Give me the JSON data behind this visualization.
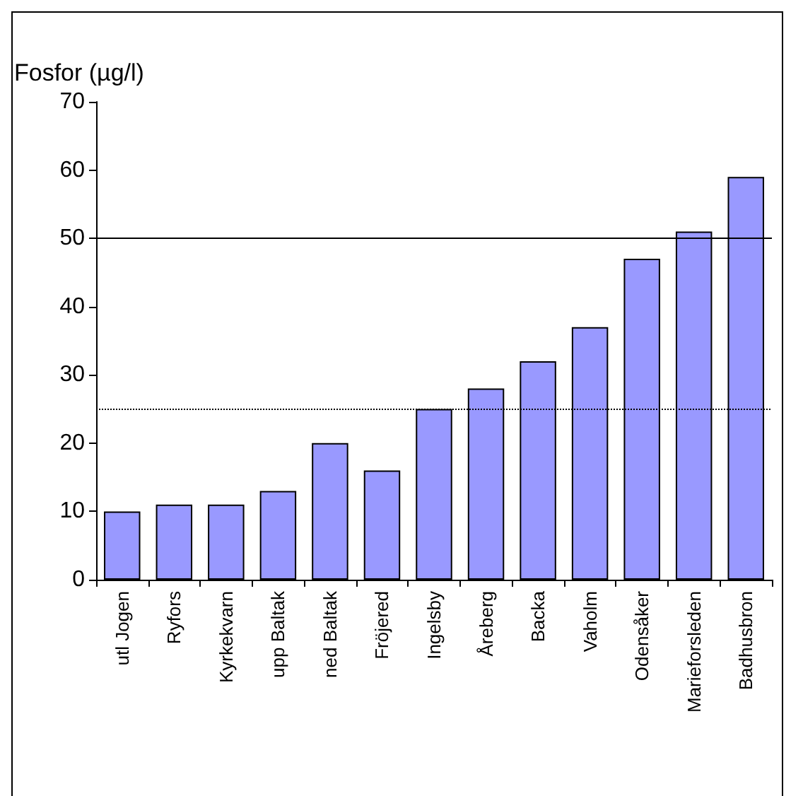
{
  "chart_data": {
    "type": "bar",
    "ylabel": "Fosfor (µg/l)",
    "categories": [
      "utl Jogen",
      "Ryfors",
      "Kyrkekvarn",
      "upp Baltak",
      "ned Baltak",
      "Fröjered",
      "Ingelsby",
      "Åreberg",
      "Backa",
      "Vaholm",
      "Odensåker",
      "Marieforsleden",
      "Badhusbron"
    ],
    "values": [
      10,
      11,
      11,
      13,
      20,
      16,
      25,
      28,
      32,
      37,
      47,
      51,
      59
    ],
    "color": "#9999ff",
    "ylim": [
      0,
      70
    ],
    "yticks": [
      0,
      10,
      20,
      30,
      40,
      50,
      60,
      70
    ],
    "ref_lines": [
      {
        "axis": "y",
        "value": 50,
        "line_style": "solid",
        "color": "#000000"
      },
      {
        "axis": "y",
        "value": 25,
        "line_style": "dotted",
        "color": "#000000"
      }
    ]
  }
}
